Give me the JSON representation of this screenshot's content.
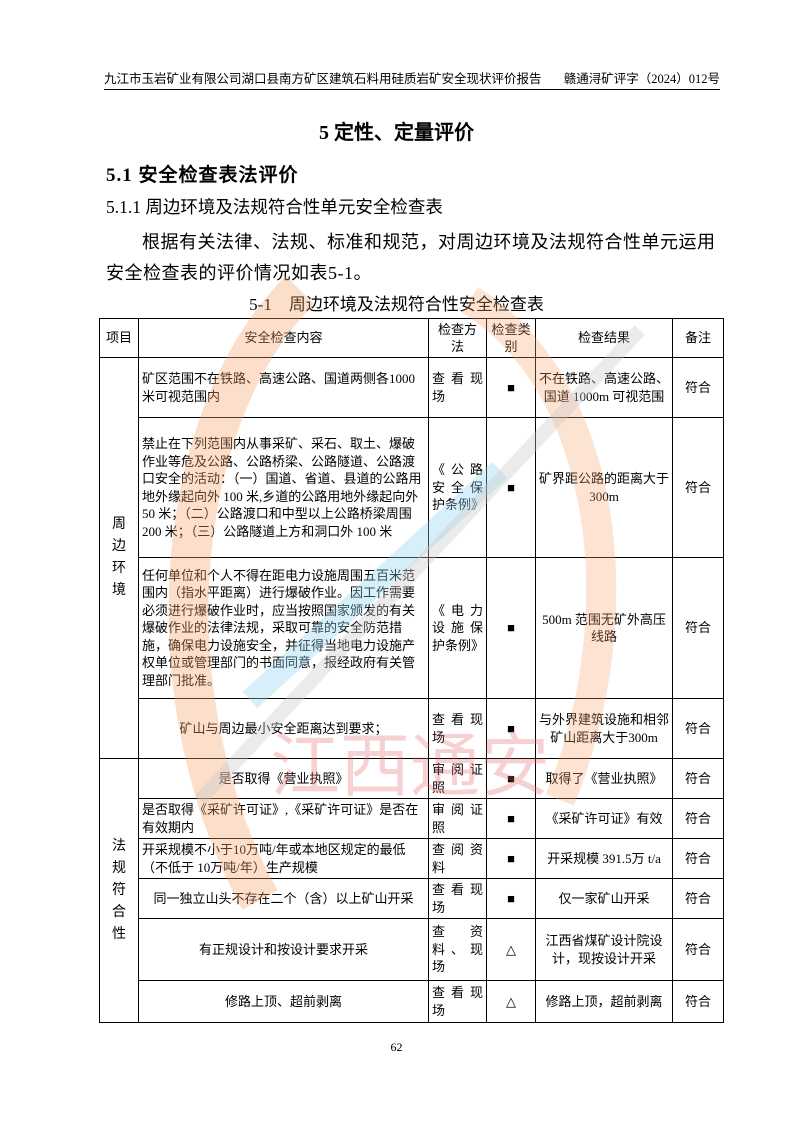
{
  "header": {
    "left": "九江市玉岩矿业有限公司湖口县南方矿区建筑石料用硅质岩矿安全现状评价报告",
    "right": "赣通浔矿评字（2024）012号"
  },
  "chapter_title": "5 定性、定量评价",
  "section_title": "5.1 安全检查表法评价",
  "subsection_title": "5.1.1 周边环境及法规符合性单元安全检查表",
  "paragraph": "根据有关法律、法规、标准和规范，对周边环境及法规符合性单元运用安全检查表的评价情况如表5-1。",
  "table_caption": "5-1　周边环境及法规符合性安全检查表",
  "table": {
    "headers": [
      "项目",
      "安全检查内容",
      "检查方法",
      "检查类别",
      "检查结果",
      "备注"
    ],
    "groups": [
      {
        "name": "周边环境",
        "rows": [
          {
            "content": "矿区范围不在铁路、高速公路、国道两侧各1000米可视范围内",
            "method": "查看现场",
            "category": "■",
            "result": "不在铁路、高速公路、国道 1000m 可视范围",
            "note": "符合"
          },
          {
            "content": "禁止在下列范围内从事采矿、采石、取土、爆破作业等危及公路、公路桥梁、公路隧道、公路渡口安全的活动：（一）国道、省道、县道的公路用地外缘起向外 100 米,乡道的公路用地外缘起向外 50 米；（二）公路渡口和中型以上公路桥梁周围 200 米；（三）公路隧道上方和洞口外 100 米",
            "method": "《公路安全保护条例》",
            "category": "■",
            "result": "矿界距公路的距离大于 300m",
            "note": "符合"
          },
          {
            "content": "任何单位和个人不得在距电力设施周围五百米范围内（指水平距离）进行爆破作业。因工作需要必须进行爆破作业时，应当按照国家颁发的有关爆破作业的法律法规，采取可靠的安全防范措施，确保电力设施安全，并征得当地电力设施产权单位或管理部门的书面同意，报经政府有关管理部门批准。",
            "method": "《电力设施保护条例》",
            "category": "■",
            "result": "500m 范围无矿外高压线路",
            "note": "符合"
          },
          {
            "content": "矿山与周边最小安全距离达到要求；",
            "method": "查看现场",
            "category": "■",
            "result": "与外界建筑设施和相邻矿山距离大于300m",
            "note": "符合"
          }
        ]
      },
      {
        "name": "法规符合性",
        "rows": [
          {
            "content": "是否取得《营业执照》",
            "method": "审阅证照",
            "category": "■",
            "result": "取得了《营业执照》",
            "note": "符合"
          },
          {
            "content": "是否取得《采矿许可证》,《采矿许可证》是否在有效期内",
            "method": "审阅证照",
            "category": "■",
            "result": "《采矿许可证》有效",
            "note": "符合"
          },
          {
            "content": "开采规模不小于10万吨/年或本地区规定的最低（不低于 10万吨/年）生产规模",
            "method": "查阅资料",
            "category": "■",
            "result": "开采规模 391.5万 t/a",
            "note": "符合"
          },
          {
            "content": "同一独立山头不存在二个（含）以上矿山开采",
            "method": "查看现场",
            "category": "■",
            "result": "仅一家矿山开采",
            "note": "符合"
          },
          {
            "content": "有正规设计和按设计要求开采",
            "method": "查资料、现场",
            "category": "△",
            "result": "江西省煤矿设计院设计，现按设计开采",
            "note": "符合"
          },
          {
            "content": "修路上顶、超前剥离",
            "method": "查看现场",
            "category": "△",
            "result": "修路上顶，超前剥离",
            "note": "符合"
          }
        ]
      }
    ]
  },
  "page_number": "62",
  "watermark": {
    "text": "江西通安",
    "colors": {
      "arc": "#f4a36a",
      "blue": "#8fd3ee",
      "red": "#e86a6a",
      "gray": "#c8c8c8"
    }
  }
}
